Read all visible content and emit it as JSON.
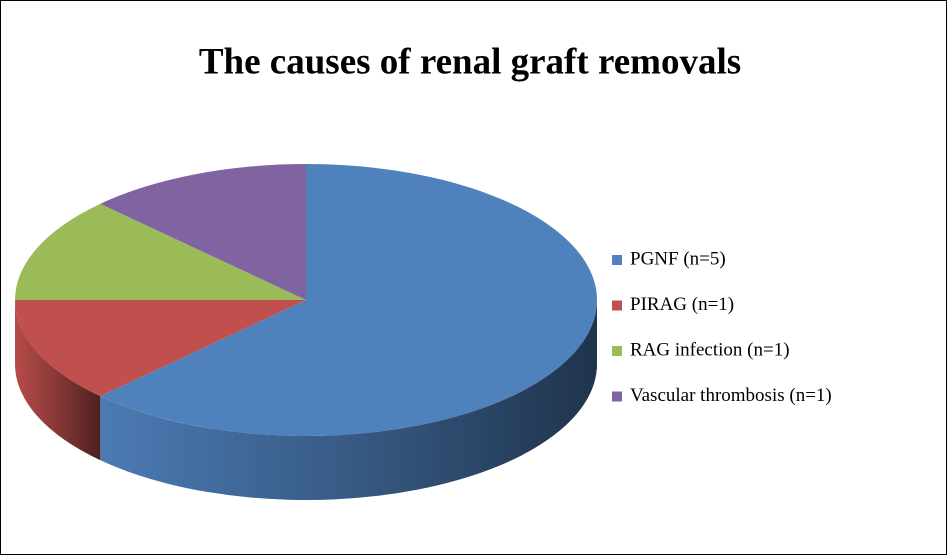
{
  "chart_data": {
    "type": "pie",
    "title": "The causes of renal graft removals",
    "categories": [
      "PGNF (n=5)",
      "PIRAG (n=1)",
      "RAG infection (n=1)",
      "Vascular thrombosis (n=1)"
    ],
    "values": [
      5,
      1,
      1,
      1
    ],
    "colors": [
      "#4f81bd",
      "#c0504d",
      "#9bbb59",
      "#8064a2"
    ],
    "legend": "right"
  }
}
